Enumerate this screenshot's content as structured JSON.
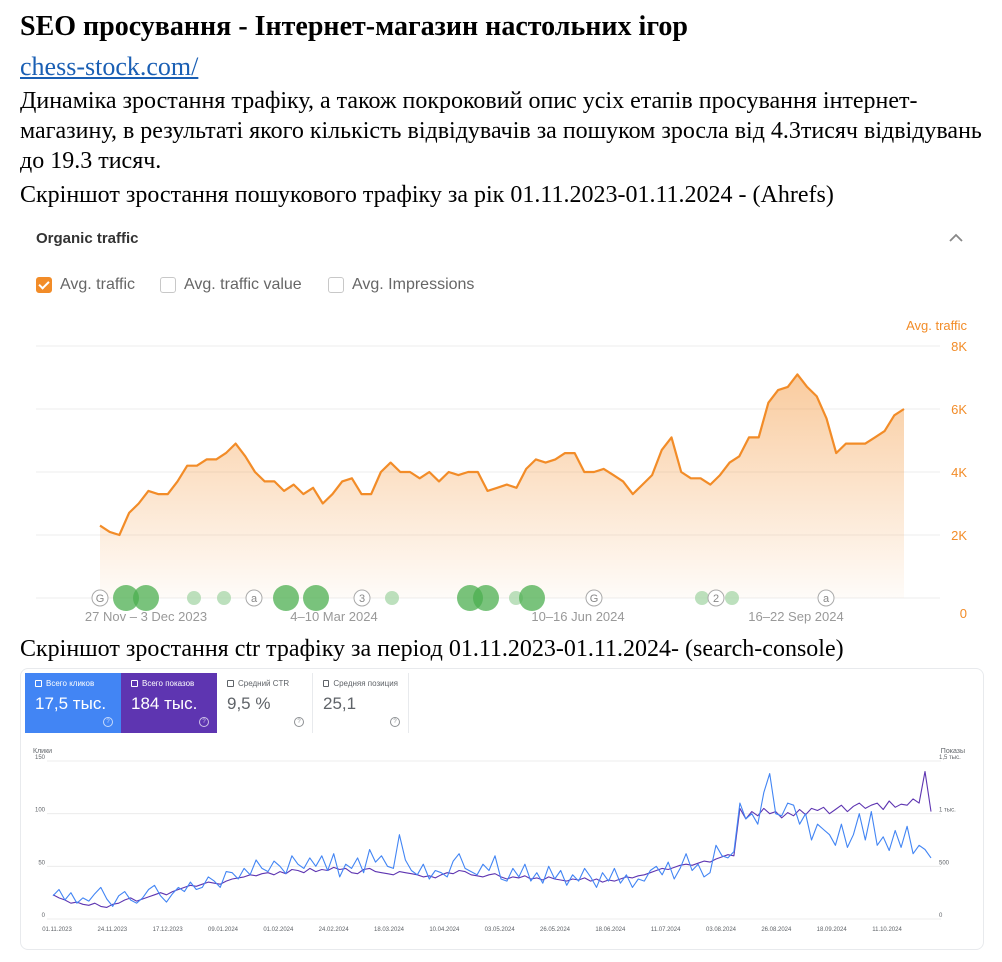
{
  "document": {
    "title": "SEO просування - Інтернет-магазин настольних ігор",
    "link": "chess-stock.com/",
    "description": "Динаміка зростання трафіку, а також покроковий опис усіх етапів просування інтернет-магазину, в результаті якого кількість відвідувачів за пошуком зросла від 4.3тисяч відвідувань до 19.3 тисяч.",
    "caption_ahrefs": "Скріншот зростання пошукового трафіку за рік 01.11.2023-01.11.2024 - (Ahrefs)",
    "caption_gsc": "Скріншот зростання ctr трафіку за період 01.11.2023-01.11.2024- (search-console)"
  },
  "ahrefs": {
    "panel_title": "Organic traffic",
    "collapse_icon": "chevron-up-icon",
    "legend": [
      {
        "label": "Avg. traffic",
        "checked": true
      },
      {
        "label": "Avg. traffic value",
        "checked": false
      },
      {
        "label": "Avg. Impressions",
        "checked": false
      }
    ],
    "accent_color": "#f28c28",
    "grid_color": "#eeeeee",
    "axis_title": "Avg. traffic",
    "y_ticks": [
      "8K",
      "6K",
      "4K",
      "2K",
      "0"
    ],
    "x_ticks": [
      "27 Nov – 3 Dec 2023",
      "4–10 Mar 2024",
      "10–16 Jun 2024",
      "16–22 Sep 2024"
    ],
    "markers": [
      {
        "kind": "badge",
        "text": "G"
      },
      {
        "kind": "circle",
        "size": "large"
      },
      {
        "kind": "circle",
        "size": "large"
      },
      {
        "kind": "circle",
        "size": "small"
      },
      {
        "kind": "circle",
        "size": "small"
      },
      {
        "kind": "badge",
        "text": "a"
      },
      {
        "kind": "circle",
        "size": "large"
      },
      {
        "kind": "circle",
        "size": "large"
      },
      {
        "kind": "badge",
        "text": "3"
      },
      {
        "kind": "circle",
        "size": "small"
      },
      {
        "kind": "circle",
        "size": "large"
      },
      {
        "kind": "circle",
        "size": "large"
      },
      {
        "kind": "circle",
        "size": "small"
      },
      {
        "kind": "circle",
        "size": "large"
      },
      {
        "kind": "badge",
        "text": "G"
      },
      {
        "kind": "circle",
        "size": "small"
      },
      {
        "kind": "badge",
        "text": "2"
      },
      {
        "kind": "circle",
        "size": "small"
      },
      {
        "kind": "badge",
        "text": "a"
      }
    ]
  },
  "search_console": {
    "cards": [
      {
        "label": "Всего кликов",
        "value": "17,5 тыс.",
        "checked": true
      },
      {
        "label": "Всего показов",
        "value": "184 тыс.",
        "checked": true
      },
      {
        "label": "Средний CTR",
        "value": "9,5 %",
        "checked": false
      },
      {
        "label": "Средняя позиция",
        "value": "25,1",
        "checked": false
      }
    ],
    "left_axis_title": "Клики",
    "right_axis_title": "Показы",
    "left_ticks": [
      "150",
      "100",
      "50",
      "0"
    ],
    "right_ticks": [
      "1,5 тыс.",
      "1 тыс.",
      "500",
      "0"
    ],
    "x_ticks": [
      "01.11.2023",
      "24.11.2023",
      "17.12.2023",
      "09.01.2024",
      "01.02.2024",
      "24.02.2024",
      "18.03.2024",
      "10.04.2024",
      "03.05.2024",
      "26.05.2024",
      "18.06.2024",
      "11.07.2024",
      "03.08.2024",
      "26.08.2024",
      "18.09.2024",
      "11.10.2024"
    ],
    "clicks_color": "#4285f4",
    "impressions_color": "#5e35b1"
  },
  "chart_data": [
    {
      "type": "area",
      "title": "Organic traffic",
      "ylabel": "Avg. traffic",
      "ylim": [
        0,
        8000
      ],
      "x_range": [
        "2023-11-01",
        "2024-11-01"
      ],
      "series": [
        {
          "name": "Avg. traffic",
          "values": [
            2300,
            2100,
            2000,
            2700,
            3000,
            3400,
            3300,
            3300,
            3700,
            4200,
            4200,
            4400,
            4400,
            4600,
            4900,
            4500,
            4000,
            3700,
            3700,
            3400,
            3600,
            3300,
            3500,
            3000,
            3300,
            3700,
            3800,
            3300,
            3300,
            4000,
            4300,
            4000,
            4000,
            3800,
            4000,
            3700,
            4000,
            3900,
            4000,
            4000,
            3400,
            3500,
            3600,
            3500,
            4100,
            4400,
            4300,
            4400,
            4600,
            4600,
            4000,
            4000,
            4100,
            3900,
            3700,
            3300,
            3600,
            3900,
            4700,
            5100,
            4000,
            3800,
            3800,
            3600,
            3900,
            4300,
            4500,
            5100,
            5100,
            6200,
            6600,
            6700,
            7100,
            6700,
            6400,
            5700,
            4600,
            4900,
            4900,
            4900,
            5100,
            5300,
            5800,
            6000
          ]
        }
      ]
    },
    {
      "type": "line",
      "title": "",
      "ylabel": "Клики",
      "y2label": "Показы",
      "ylim": [
        0,
        150
      ],
      "y2lim": [
        0,
        1500
      ],
      "x_range": [
        "01.11.2023",
        "31.10.2024"
      ],
      "series": [
        {
          "name": "Всего кликов",
          "axis": "left",
          "values": [
            22,
            28,
            18,
            25,
            15,
            20,
            17,
            24,
            30,
            19,
            12,
            22,
            26,
            18,
            15,
            20,
            28,
            32,
            22,
            16,
            24,
            30,
            26,
            35,
            28,
            30,
            40,
            36,
            30,
            45,
            44,
            38,
            48,
            42,
            56,
            48,
            45,
            55,
            50,
            43,
            60,
            52,
            48,
            58,
            50,
            60,
            46,
            62,
            40,
            52,
            48,
            58,
            44,
            66,
            54,
            60,
            50,
            48,
            80,
            56,
            46,
            42,
            52,
            38,
            46,
            44,
            40,
            55,
            62,
            48,
            45,
            42,
            52,
            46,
            60,
            38,
            36,
            48,
            40,
            52,
            36,
            44,
            34,
            50,
            38,
            46,
            32,
            42,
            36,
            48,
            40,
            30,
            44,
            36,
            48,
            34,
            42,
            30,
            38,
            36,
            46,
            50,
            42,
            54,
            38,
            48,
            62,
            46,
            52,
            40,
            44,
            70,
            60,
            58,
            64,
            110,
            95,
            100,
            90,
            120,
            138,
            100,
            98,
            110,
            108,
            90,
            100,
            75,
            90,
            85,
            80,
            70,
            90,
            68,
            80,
            100,
            75,
            102,
            70,
            78,
            65,
            84,
            68,
            88,
            62,
            70,
            66,
            58
          ]
        },
        {
          "name": "Всего показов",
          "axis": "right",
          "values": [
            230,
            200,
            180,
            150,
            160,
            140,
            130,
            150,
            120,
            110,
            140,
            150,
            180,
            200,
            170,
            190,
            210,
            230,
            250,
            230,
            260,
            280,
            300,
            320,
            310,
            330,
            350,
            340,
            330,
            360,
            380,
            390,
            400,
            420,
            410,
            430,
            440,
            420,
            450,
            430,
            470,
            460,
            440,
            480,
            450,
            470,
            460,
            490,
            470,
            480,
            440,
            430,
            470,
            480,
            450,
            440,
            430,
            420,
            450,
            440,
            430,
            420,
            400,
            410,
            390,
            420,
            440,
            430,
            460,
            450,
            420,
            410,
            400,
            420,
            430,
            400,
            380,
            400,
            390,
            410,
            380,
            390,
            370,
            400,
            380,
            370,
            360,
            380,
            370,
            390,
            360,
            380,
            350,
            370,
            360,
            380,
            400,
            390,
            410,
            420,
            440,
            460,
            480,
            470,
            490,
            510,
            520,
            510,
            530,
            550,
            540,
            570,
            590,
            610,
            600,
            1050,
            950,
            1020,
            980,
            1050,
            1000,
            1020,
            960,
            1010,
            980,
            1040,
            990,
            1050,
            1030,
            1060,
            1000,
            1040,
            1080,
            1020,
            1070,
            1100,
            1050,
            1080,
            1100,
            1040,
            1120,
            1060,
            1090,
            1080,
            1140,
            1100,
            1400,
            1020
          ]
        }
      ]
    }
  ]
}
